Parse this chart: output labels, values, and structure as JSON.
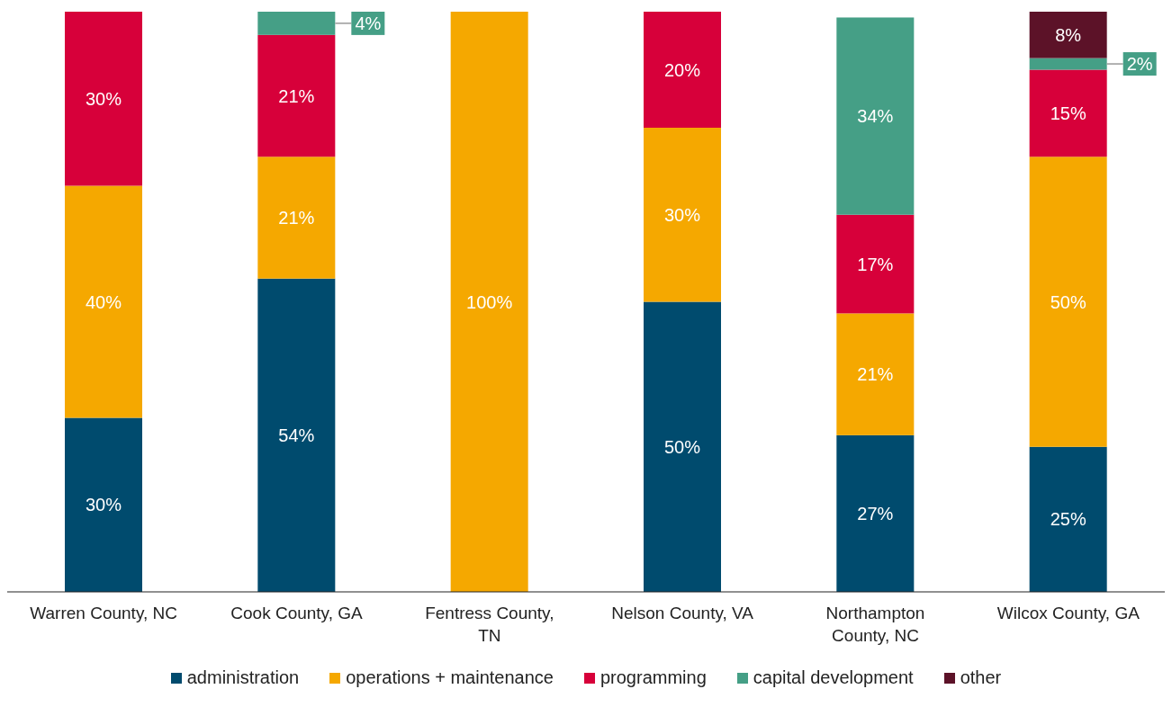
{
  "chart_data": {
    "type": "bar",
    "stacked": true,
    "categories": [
      "Warren County, NC",
      "Cook County, GA",
      "Fentress County, TN",
      "Nelson County, VA",
      "Northampton County, NC",
      "Wilcox County, GA"
    ],
    "ylim": [
      0,
      100
    ],
    "tick_labels": "x",
    "grid": false,
    "legend": "bottom",
    "series": [
      {
        "name": "administration",
        "color": "#004b6e",
        "values": [
          30,
          54,
          null,
          50,
          27,
          25
        ],
        "value_labels": [
          "30%",
          "54%",
          null,
          "50%",
          "27%",
          "25%"
        ]
      },
      {
        "name": "operations + maintenance",
        "color": "#f5a800",
        "values": [
          40,
          21,
          100,
          30,
          21,
          50
        ],
        "value_labels": [
          "40%",
          "21%",
          "100%",
          "30%",
          "21%",
          "50%"
        ]
      },
      {
        "name": "programming",
        "color": "#d7003a",
        "values": [
          30,
          21,
          null,
          20,
          17,
          15
        ],
        "value_labels": [
          "30%",
          "21%",
          null,
          "20%",
          "17%",
          "15%"
        ]
      },
      {
        "name": "capital development",
        "color": "#459f86",
        "values": [
          null,
          4,
          null,
          null,
          34,
          2
        ],
        "value_labels": [
          null,
          "4%",
          null,
          null,
          "34%",
          "2%"
        ]
      },
      {
        "name": "other",
        "color": "#5c1228",
        "values": [
          null,
          null,
          null,
          null,
          null,
          8
        ],
        "value_labels": [
          null,
          null,
          null,
          null,
          null,
          "8%"
        ]
      }
    ]
  }
}
